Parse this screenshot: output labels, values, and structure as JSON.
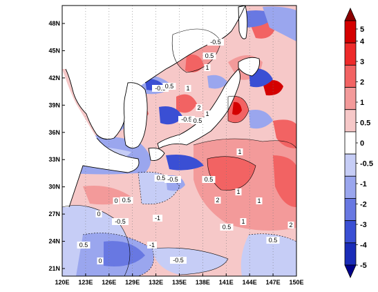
{
  "map": {
    "lon_ticks": [
      "120E",
      "123E",
      "126E",
      "129E",
      "132E",
      "135E",
      "138E",
      "141E",
      "144E",
      "147E",
      "150E"
    ],
    "lat_ticks": [
      "48N",
      "45N",
      "42N",
      "39N",
      "36N",
      "33N",
      "30N",
      "27N",
      "24N",
      "21N"
    ],
    "contour_labels": [
      "-0.5",
      "0.5",
      "1",
      "-0.5",
      "0.5",
      "1",
      "-0.5",
      "0.5",
      "2",
      "1",
      "-0.5",
      "0.5",
      "0.5",
      "1",
      "2",
      "1",
      "1",
      "-1",
      "-0.5",
      "0.5",
      "0",
      "0",
      "0.5",
      "-1",
      "0.5",
      "2",
      "-0.5",
      "0.5",
      "1",
      "0"
    ]
  },
  "colorbar": {
    "levels": [
      "5",
      "4",
      "3",
      "2",
      "1",
      "0.5",
      "0",
      "-0.5",
      "-1",
      "-2",
      "-3",
      "-4",
      "-5"
    ],
    "colors": [
      "#8b0000",
      "#d40000",
      "#ee2a2a",
      "#f26363",
      "#f39a9a",
      "#f6c8c8",
      "#ffffff",
      "#c6cdf6",
      "#9aa6ee",
      "#6878e2",
      "#3a4fd4",
      "#1a2cb8",
      "#00008b"
    ]
  },
  "colors": {
    "land": "#ffffff",
    "ocean_base": "#f6c8c8",
    "coast": "#000000"
  }
}
